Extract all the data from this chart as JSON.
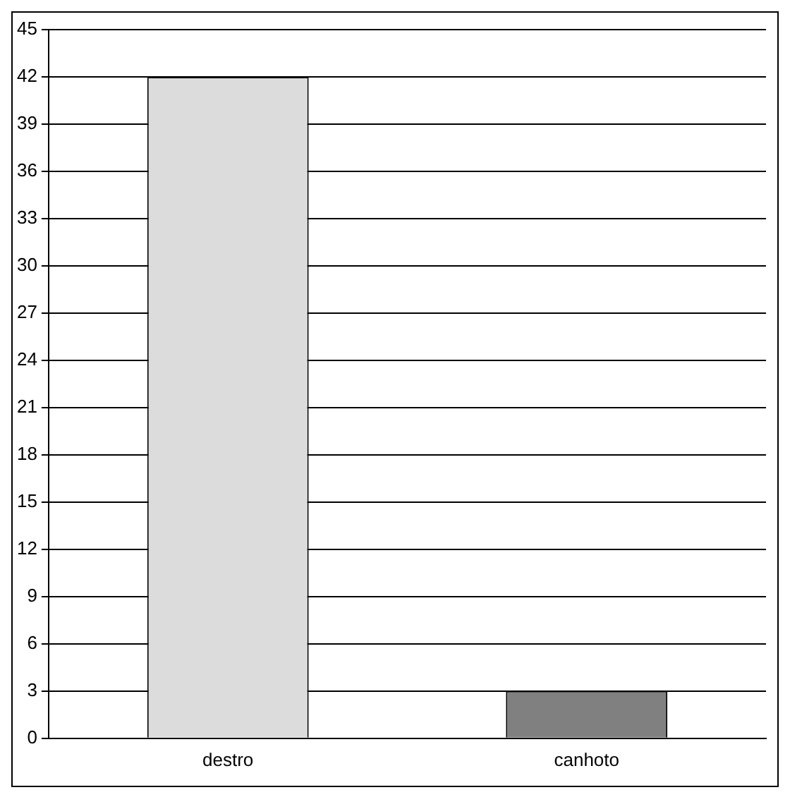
{
  "chart_data": {
    "type": "bar",
    "categories": [
      "destro",
      "canhoto"
    ],
    "values": [
      42,
      3
    ],
    "colors": [
      "#dcdcdc",
      "#808080"
    ],
    "ylim": [
      0,
      45
    ],
    "yticks": [
      0,
      3,
      6,
      9,
      12,
      15,
      18,
      21,
      24,
      27,
      30,
      33,
      36,
      39,
      42,
      45
    ],
    "grid": "y",
    "legend": false
  }
}
